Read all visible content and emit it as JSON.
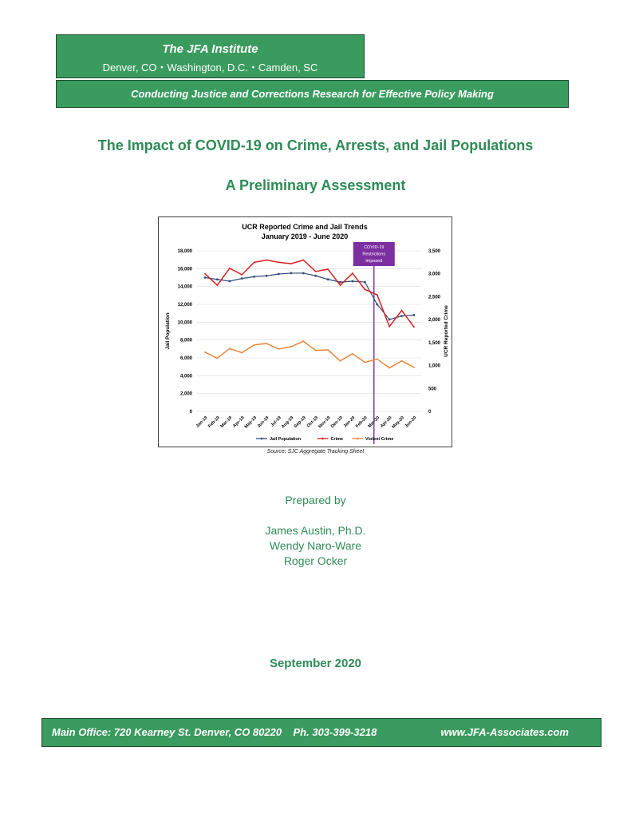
{
  "header": {
    "institute": "The JFA Institute",
    "locations": "Denver, CO・Washington, D.C.・Camden, SC",
    "tagline": "Conducting Justice and Corrections Research for Effective Policy Making"
  },
  "title": "The Impact of COVID-19 on Crime, Arrests, and Jail Populations",
  "subtitle": "A Preliminary Assessment",
  "chart_source": "Source: SJC Aggregate Tracking Sheet",
  "chart_data": {
    "type": "line",
    "title": "UCR Reported Crime and Jail Trends",
    "subtitle": "January 2019 - June 2020",
    "categories": [
      "Jan-19",
      "Feb-19",
      "Mar-19",
      "Apr-19",
      "May-19",
      "Jun-19",
      "Jul-19",
      "Aug-19",
      "Sep-19",
      "Oct-19",
      "Nov-19",
      "Dec-19",
      "Jan-20",
      "Feb-20",
      "Mar-20",
      "Apr-20",
      "May-20",
      "Jun-20"
    ],
    "ylabel": "Jail Population",
    "ylim": [
      0,
      18000
    ],
    "yticks": [
      "0",
      "2,000",
      "4,000",
      "6,000",
      "8,000",
      "10,000",
      "12,000",
      "14,000",
      "16,000",
      "18,000"
    ],
    "y2label": "UCR Reported Crime",
    "y2lim": [
      0,
      3500
    ],
    "y2ticks": [
      "0",
      "500",
      "1,000",
      "1,500",
      "2,000",
      "2,500",
      "3,000",
      "3,500"
    ],
    "series": [
      {
        "name": "Jail Population",
        "axis": "left",
        "color": "#2f4b7c",
        "values": [
          15000,
          14800,
          14600,
          14900,
          15100,
          15200,
          15400,
          15500,
          15500,
          15200,
          14800,
          14500,
          14600,
          14500,
          12000,
          10300,
          10700,
          10800
        ]
      },
      {
        "name": "Crime",
        "axis": "right",
        "color": "#d62020",
        "values": [
          3000,
          2750,
          3120,
          2980,
          3250,
          3300,
          3250,
          3220,
          3300,
          3050,
          3100,
          2750,
          3010,
          2660,
          2540,
          1850,
          2200,
          1840
        ]
      },
      {
        "name": "Violent Crime",
        "axis": "right",
        "color": "#e8873a",
        "values": [
          1290,
          1160,
          1370,
          1280,
          1450,
          1480,
          1360,
          1410,
          1530,
          1330,
          1340,
          1100,
          1260,
          1070,
          1140,
          950,
          1100,
          960
        ]
      }
    ],
    "annotation": {
      "label": "COVID-19 Restrictions Imposed",
      "category": "Mar-20",
      "color": "#7b2fa0"
    },
    "legend": "bottom",
    "grid": true
  },
  "prepared_by": "Prepared by",
  "authors": [
    "James Austin, Ph.D.",
    "Wendy Naro-Ware",
    "Roger Ocker"
  ],
  "date": "September 2020",
  "footer": {
    "office": "Main Office: 720 Kearney St. Denver, CO 80220    Ph. 303-399-3218",
    "website": "www.JFA-Associates.com"
  }
}
